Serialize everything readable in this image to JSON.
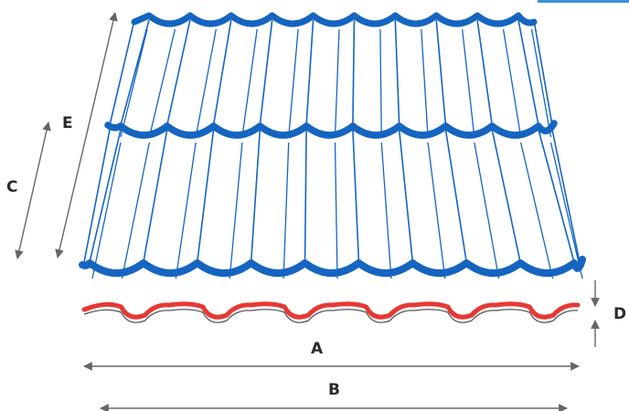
{
  "dimensions": {
    "a": "A",
    "b": "B",
    "c": "C",
    "d": "D",
    "e": "E"
  },
  "colors": {
    "sheet_wave": "#1565c0",
    "sheet_lines": "#1565c0",
    "profile_top": "#e53935",
    "profile_bottom": "#555555",
    "arrows": "#666666",
    "labels": "#2b2b2b",
    "corner_tab": "#3b8fd6"
  }
}
